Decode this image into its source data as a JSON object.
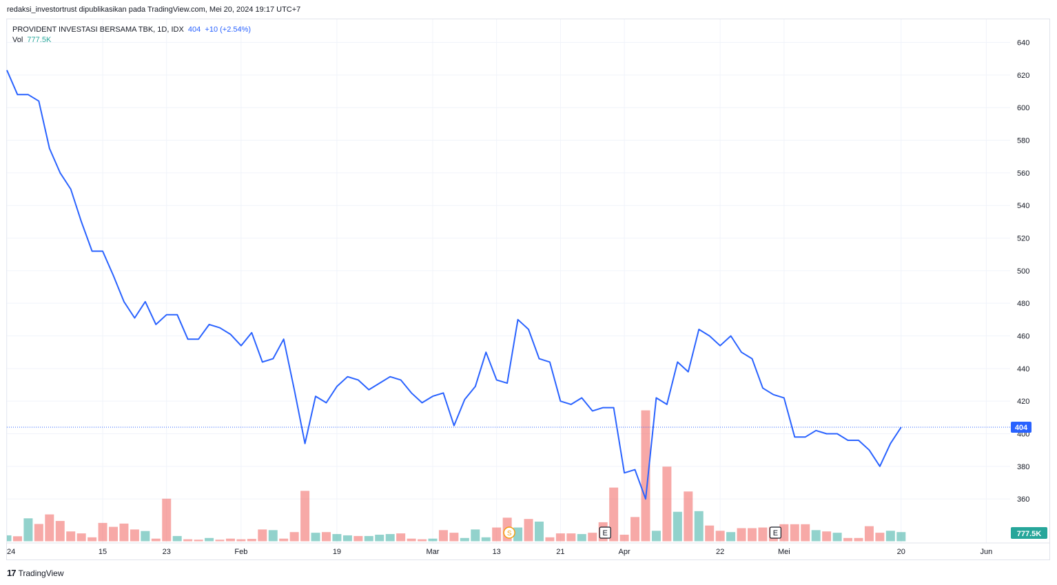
{
  "header": {
    "publish_line": "redaksi_investortrust dipublikasikan pada TradingView.com, Mei 20, 2024 19:17 UTC+7"
  },
  "legend": {
    "symbol": "PROVIDENT INVESTASI BERSAMA TBK, 1D, IDX",
    "last": "404",
    "change": "+10 (+2.54%)",
    "vol_label": "Vol",
    "vol_value": "777.5K"
  },
  "footer": {
    "logo": "17",
    "brand": "TradingView"
  },
  "colors": {
    "line": "#2962ff",
    "vol_up": "#26a69a",
    "vol_down": "#ef5350",
    "grid": "#f0f3fa",
    "price_tag_bg": "#2962ff",
    "vol_tag_bg": "#26a69a",
    "event_s": "#f59d0b"
  },
  "chart_data": {
    "type": "line",
    "title": "PROVIDENT INVESTASI BERSAMA TBK, 1D, IDX",
    "ylim": [
      350,
      645
    ],
    "y_ticks": [
      360,
      380,
      400,
      420,
      440,
      460,
      480,
      500,
      520,
      540,
      560,
      580,
      600,
      620,
      640
    ],
    "x_labels": [
      {
        "label": "24",
        "bar": 0
      },
      {
        "label": "15",
        "bar": 9
      },
      {
        "label": "23",
        "bar": 15
      },
      {
        "label": "Feb",
        "bar": 22
      },
      {
        "label": "19",
        "bar": 31
      },
      {
        "label": "Mar",
        "bar": 40
      },
      {
        "label": "13",
        "bar": 46
      },
      {
        "label": "21",
        "bar": 52
      },
      {
        "label": "Apr",
        "bar": 58
      },
      {
        "label": "22",
        "bar": 67
      },
      {
        "label": "Mei",
        "bar": 73
      },
      {
        "label": "20",
        "bar": 84
      },
      {
        "label": "Jun",
        "bar": 92
      }
    ],
    "grid": true,
    "last_price_label": "404",
    "last_volume_label": "777.5K",
    "series": [
      {
        "values": [
          623,
          608,
          608,
          604,
          575,
          560,
          550,
          530,
          512,
          512,
          497,
          481,
          471,
          481,
          467,
          473,
          473,
          458,
          458,
          467,
          465,
          461,
          454,
          462,
          444,
          446,
          458,
          427,
          394,
          423,
          419,
          429,
          435,
          433,
          427,
          431,
          435,
          433,
          425,
          419,
          423,
          425,
          405,
          421,
          429,
          450,
          433,
          431,
          470,
          464,
          446,
          444,
          420,
          418,
          422,
          414,
          416,
          416,
          376,
          378,
          360,
          422,
          418,
          444,
          438,
          464,
          460,
          454,
          460,
          450,
          446,
          428,
          424,
          422,
          398,
          398,
          402,
          400,
          400,
          396,
          396,
          390,
          380,
          394,
          404
        ]
      },
      {
        "name": "Vol",
        "volume_max": 1000,
        "volume_levels": [
          45,
          38,
          175,
          132,
          205,
          155,
          75,
          60,
          30,
          140,
          110,
          135,
          90,
          78,
          20,
          325,
          40,
          15,
          12,
          25,
          12,
          20,
          15,
          18,
          90,
          85,
          20,
          70,
          385,
          65,
          70,
          55,
          45,
          40,
          40,
          50,
          55,
          60,
          20,
          15,
          20,
          85,
          65,
          25,
          90,
          30,
          105,
          180,
          105,
          170,
          150,
          30,
          60,
          60,
          55,
          65,
          145,
          410,
          50,
          185,
          1000,
          80,
          570,
          225,
          380,
          230,
          120,
          80,
          70,
          100,
          100,
          105,
          110,
          130,
          130,
          130,
          85,
          75,
          65,
          25,
          25,
          115,
          65,
          80,
          70
        ],
        "volume_up": [
          true,
          false,
          true,
          false,
          false,
          false,
          false,
          false,
          false,
          false,
          false,
          false,
          false,
          true,
          false,
          false,
          true,
          false,
          false,
          true,
          false,
          false,
          false,
          false,
          false,
          true,
          false,
          false,
          false,
          true,
          false,
          true,
          true,
          false,
          true,
          true,
          true,
          false,
          false,
          false,
          true,
          false,
          false,
          true,
          true,
          true,
          false,
          false,
          true,
          false,
          true,
          false,
          false,
          false,
          true,
          false,
          false,
          false,
          false,
          false,
          false,
          true,
          false,
          true,
          false,
          true,
          false,
          false,
          true,
          false,
          false,
          false,
          false,
          false,
          false,
          false,
          true,
          false,
          true,
          false,
          false,
          false,
          false,
          true,
          true
        ]
      }
    ],
    "events": [
      {
        "type": "S",
        "bar": 47
      },
      {
        "type": "E",
        "bar": 56
      },
      {
        "type": "E",
        "bar": 72
      }
    ]
  }
}
